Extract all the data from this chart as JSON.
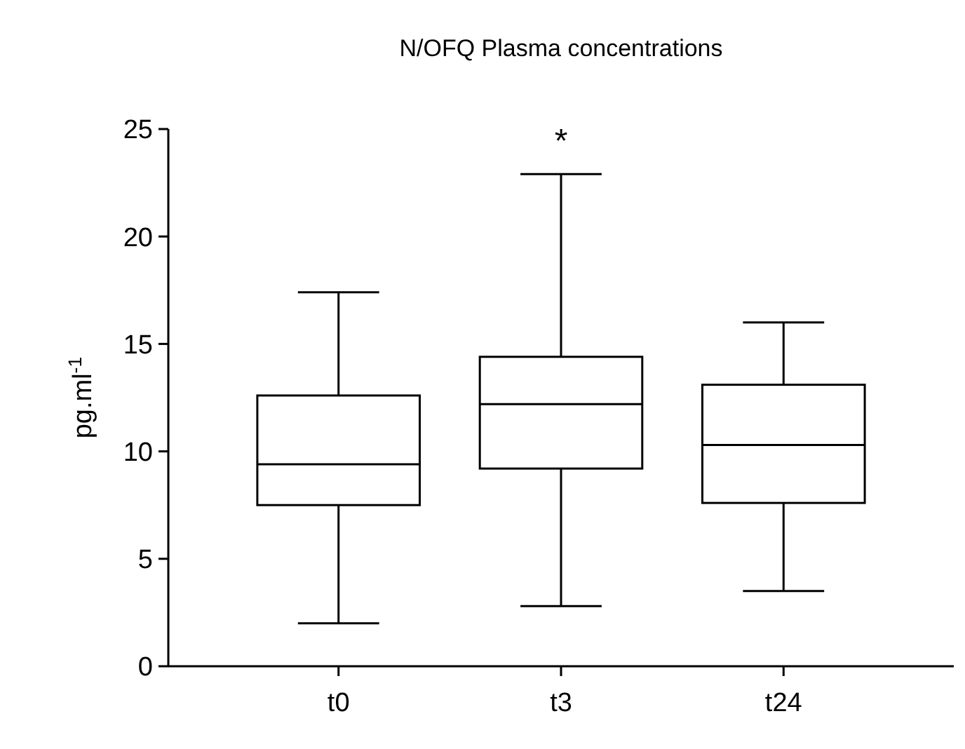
{
  "chart_data": {
    "type": "box",
    "title": "N/OFQ Plasma concentrations",
    "ylabel": "pg.ml$^{-1}$",
    "categories": [
      "t0",
      "t3",
      "t24"
    ],
    "boxes": [
      {
        "low": 2.0,
        "q1": 7.5,
        "median": 9.4,
        "q3": 12.6,
        "high": 17.4
      },
      {
        "low": 2.8,
        "q1": 9.2,
        "median": 12.2,
        "q3": 14.4,
        "high": 22.9
      },
      {
        "low": 3.5,
        "q1": 7.6,
        "median": 10.3,
        "q3": 13.1,
        "high": 16.0
      }
    ],
    "ylim": [
      0,
      25
    ],
    "yticks": [
      0,
      5,
      10,
      15,
      20,
      25
    ],
    "grid": false,
    "annotations": [
      "*"
    ]
  }
}
